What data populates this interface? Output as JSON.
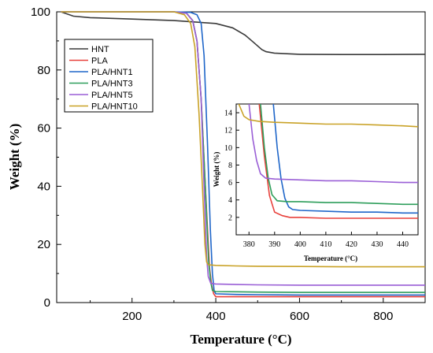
{
  "chart_data": [
    {
      "type": "line",
      "xlabel": "Temperature (°C)",
      "ylabel": "Weight (%)",
      "xlim": [
        20,
        900
      ],
      "ylim": [
        0,
        100
      ],
      "xticks": [
        200,
        400,
        600,
        800
      ],
      "yticks": [
        0,
        20,
        40,
        60,
        80,
        100
      ],
      "legend_position": "top-left",
      "grid": false,
      "series": [
        {
          "name": "HNT",
          "color": "#3a3a3a",
          "x": [
            30,
            60,
            100,
            200,
            300,
            400,
            440,
            470,
            490,
            510,
            520,
            540,
            600,
            700,
            800,
            900
          ],
          "y": [
            100,
            98.5,
            98,
            97.5,
            97,
            96,
            94.5,
            92,
            89.5,
            87,
            86.3,
            85.8,
            85.4,
            85.3,
            85.3,
            85.4
          ]
        },
        {
          "name": "PLA",
          "color": "#e8413c",
          "x": [
            30,
            300,
            330,
            345,
            355,
            365,
            375,
            385,
            390,
            395,
            400,
            450,
            500,
            600,
            700,
            800,
            900
          ],
          "y": [
            100,
            100,
            99.5,
            97,
            90,
            70,
            40,
            12,
            6,
            3,
            2,
            2,
            2,
            2,
            2,
            2,
            2
          ]
        },
        {
          "name": "PLA/HNT1",
          "color": "#1f66c9",
          "x": [
            30,
            300,
            340,
            355,
            365,
            372,
            380,
            387,
            392,
            396,
            400,
            450,
            500,
            600,
            700,
            800,
            900
          ],
          "y": [
            100,
            100,
            99.8,
            99,
            96,
            85,
            55,
            25,
            10,
            4,
            3,
            2.8,
            2.7,
            2.6,
            2.6,
            2.6,
            2.6
          ]
        },
        {
          "name": "PLA/HNT3",
          "color": "#2e9e5b",
          "x": [
            30,
            300,
            330,
            345,
            355,
            365,
            375,
            383,
            388,
            392,
            400,
            450,
            500,
            600,
            700,
            800,
            900
          ],
          "y": [
            100,
            100,
            99.5,
            97,
            90,
            70,
            40,
            14,
            7,
            4.2,
            3.8,
            3.7,
            3.6,
            3.5,
            3.5,
            3.5,
            3.5
          ]
        },
        {
          "name": "PLA/HNT5",
          "color": "#9a5fd6",
          "x": [
            30,
            300,
            330,
            345,
            355,
            365,
            372,
            378,
            382,
            388,
            400,
            450,
            500,
            600,
            700,
            800,
            900
          ],
          "y": [
            100,
            100,
            99.5,
            97,
            90,
            70,
            40,
            16,
            9,
            6.6,
            6.4,
            6.2,
            6.1,
            6.0,
            6.0,
            6.0,
            6.0
          ]
        },
        {
          "name": "PLA/HNT10",
          "color": "#c9a227",
          "x": [
            30,
            300,
            325,
            340,
            350,
            360,
            368,
            374,
            378,
            382,
            400,
            450,
            500,
            600,
            700,
            800,
            900
          ],
          "y": [
            100,
            100,
            99,
            96,
            88,
            65,
            40,
            20,
            14,
            13,
            12.8,
            12.6,
            12.5,
            12.4,
            12.3,
            12.3,
            12.3
          ]
        }
      ]
    },
    {
      "type": "line",
      "xlabel": "Temperature (°C)",
      "ylabel": "Weight (%)",
      "xlim": [
        375,
        446
      ],
      "ylim": [
        0,
        15
      ],
      "xticks": [
        380,
        390,
        400,
        410,
        420,
        430,
        440
      ],
      "yticks": [
        2,
        4,
        6,
        8,
        10,
        12,
        14
      ],
      "series": [
        {
          "name": "PLA",
          "color": "#e8413c",
          "x": [
            384,
            386,
            388,
            390,
            393,
            396,
            400,
            410,
            420,
            430,
            440,
            446
          ],
          "y": [
            15,
            9,
            4.5,
            2.6,
            2.2,
            2.0,
            2.0,
            1.9,
            1.9,
            1.9,
            1.9,
            1.9
          ]
        },
        {
          "name": "PLA/HNT1",
          "color": "#1f66c9",
          "x": [
            389.5,
            391,
            392.5,
            394,
            395.5,
            397,
            400,
            410,
            420,
            430,
            440,
            446
          ],
          "y": [
            15,
            10,
            6.5,
            4.2,
            3.2,
            2.9,
            2.8,
            2.7,
            2.6,
            2.6,
            2.5,
            2.5
          ]
        },
        {
          "name": "PLA/HNT3",
          "color": "#2e9e5b",
          "x": [
            384.5,
            386,
            387.5,
            389,
            391,
            395,
            400,
            410,
            420,
            430,
            440,
            446
          ],
          "y": [
            15,
            10,
            6.5,
            4.6,
            3.9,
            3.8,
            3.8,
            3.7,
            3.7,
            3.6,
            3.5,
            3.5
          ]
        },
        {
          "name": "PLA/HNT5",
          "color": "#9a5fd6",
          "x": [
            380,
            381.5,
            383,
            384.5,
            386.5,
            390,
            400,
            410,
            420,
            430,
            440,
            446
          ],
          "y": [
            15,
            11,
            8.5,
            7.0,
            6.5,
            6.4,
            6.3,
            6.2,
            6.2,
            6.1,
            6.0,
            6.0
          ]
        },
        {
          "name": "PLA/HNT10",
          "color": "#c9a227",
          "x": [
            376,
            378,
            380,
            384,
            390,
            400,
            410,
            420,
            430,
            440,
            446
          ],
          "y": [
            15,
            13.6,
            13.2,
            13.0,
            12.9,
            12.8,
            12.7,
            12.7,
            12.6,
            12.5,
            12.4
          ]
        }
      ]
    }
  ]
}
